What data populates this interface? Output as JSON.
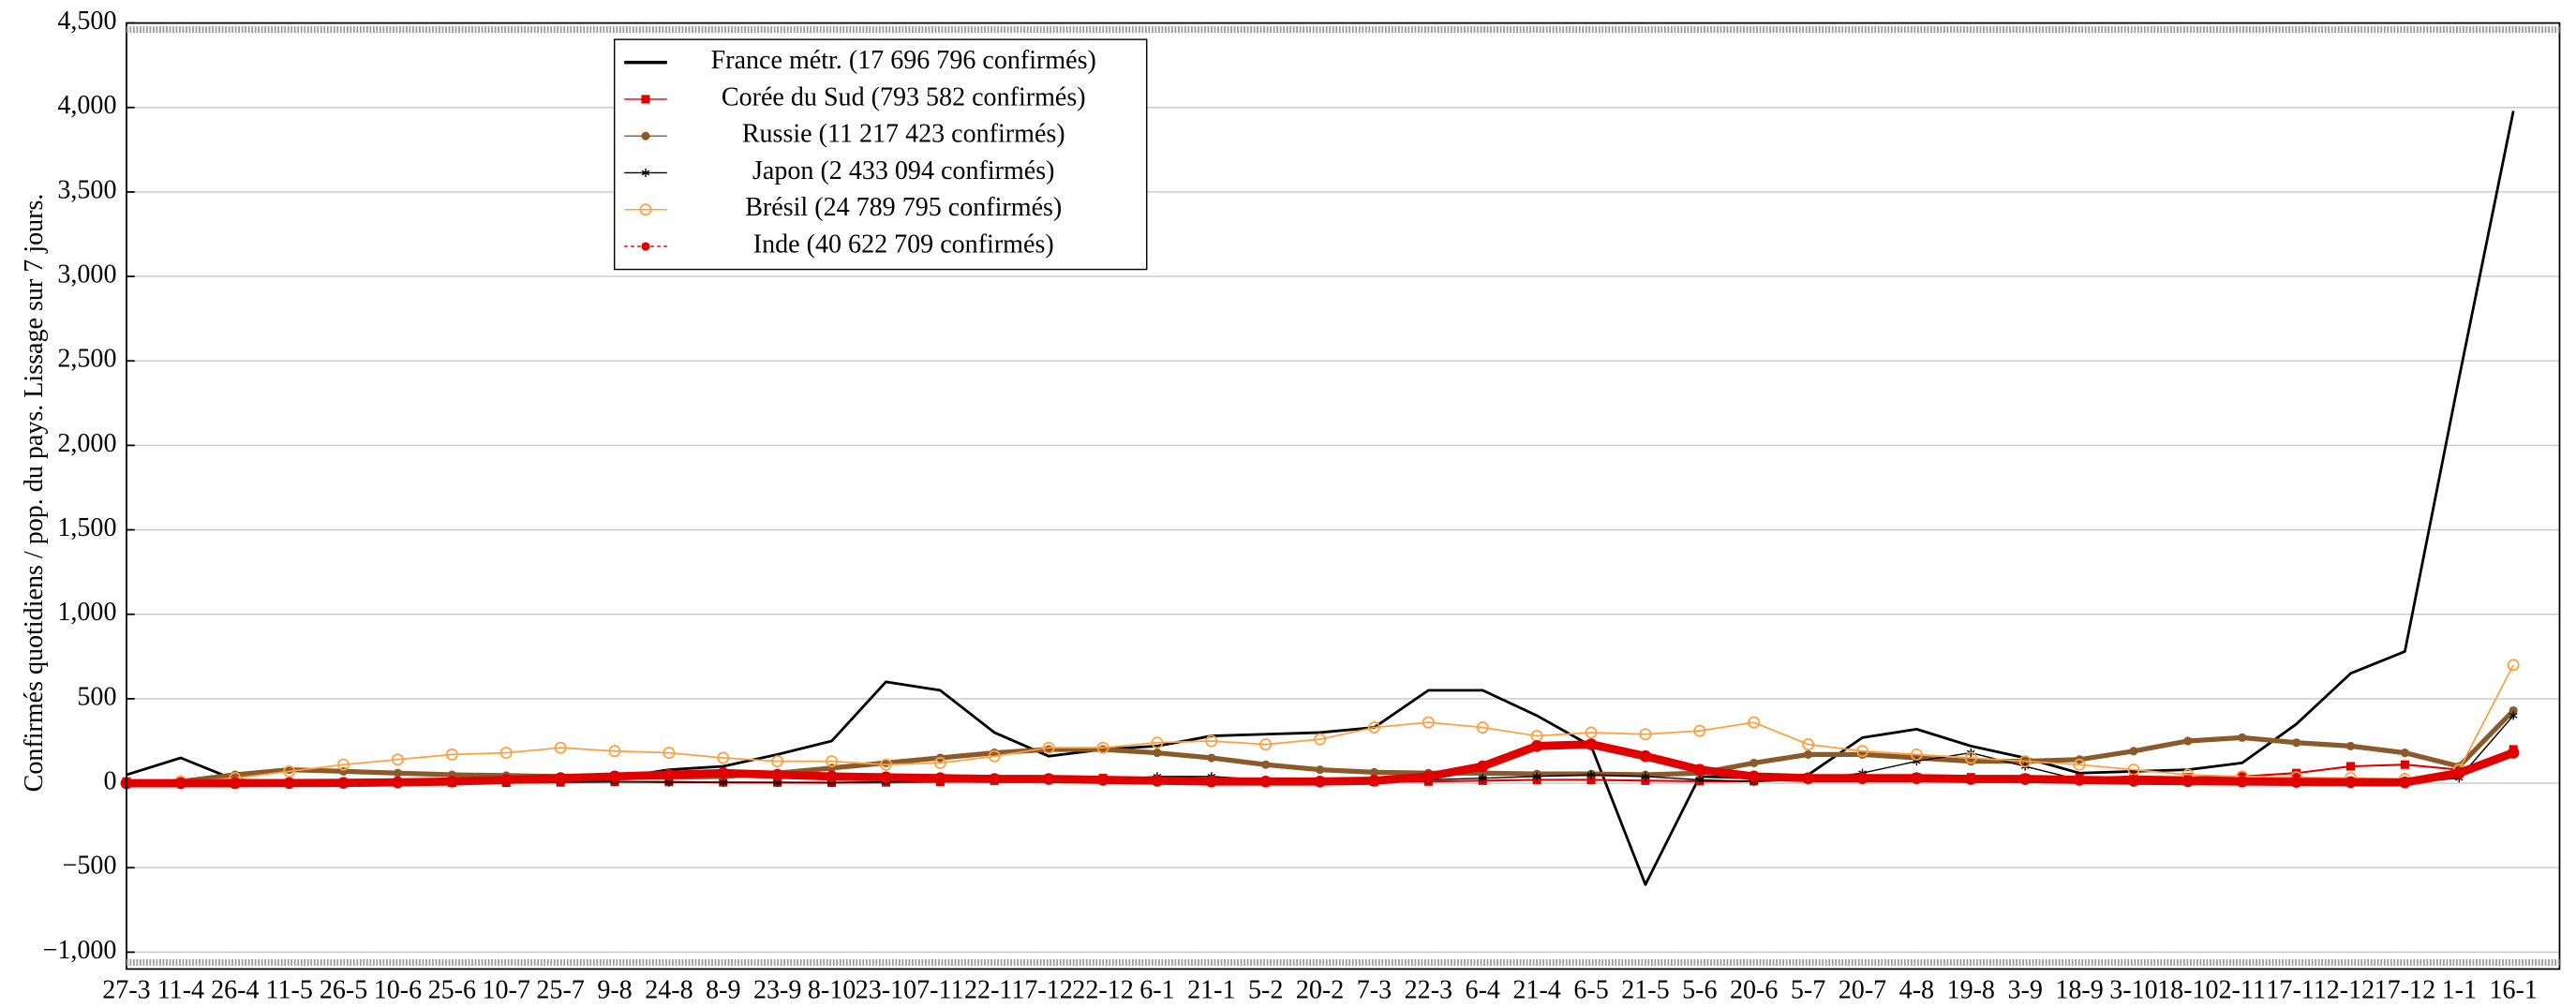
{
  "chart_data": {
    "type": "line",
    "ylabel": "Confirmés quotidiens / pop. du pays. Lissage sur 7 jours.",
    "categories": [
      "27-3",
      "11-4",
      "26-4",
      "11-5",
      "26-5",
      "10-6",
      "25-6",
      "10-7",
      "25-7",
      "9-8",
      "24-8",
      "8-9",
      "23-9",
      "8-10",
      "23-10",
      "7-11",
      "22-11",
      "7-12",
      "22-12",
      "6-1",
      "21-1",
      "5-2",
      "20-2",
      "7-3",
      "22-3",
      "6-4",
      "21-4",
      "6-5",
      "21-5",
      "5-6",
      "20-6",
      "5-7",
      "20-7",
      "4-8",
      "19-8",
      "3-9",
      "18-9",
      "3-10",
      "18-10",
      "2-11",
      "17-11",
      "2-12",
      "17-12",
      "1-1",
      "16-1"
    ],
    "ylim": [
      -1100,
      4500
    ],
    "yticks": [
      {
        "value": -1000,
        "label": "−1,000"
      },
      {
        "value": -500,
        "label": "−500"
      },
      0,
      500,
      {
        "value": 1000,
        "label": "1,000"
      },
      {
        "value": 1500,
        "label": "1,500"
      },
      {
        "value": 2000,
        "label": "2,000"
      },
      {
        "value": 2500,
        "label": "2,500"
      },
      {
        "value": 3000,
        "label": "3,000"
      },
      {
        "value": 3500,
        "label": "3,500"
      },
      {
        "value": 4000,
        "label": "4,000"
      },
      {
        "value": 4500,
        "label": "4,500"
      }
    ],
    "grid": true,
    "series": [
      {
        "name": "France métr. (17 696 796 confirmés)",
        "color": "#000000",
        "marker": "none",
        "values": [
          50,
          150,
          20,
          10,
          10,
          10,
          10,
          10,
          15,
          30,
          80,
          100,
          170,
          250,
          600,
          550,
          300,
          160,
          200,
          220,
          280,
          290,
          300,
          330,
          550,
          550,
          400,
          220,
          -600,
          40,
          30,
          50,
          270,
          320,
          220,
          150,
          60,
          70,
          80,
          120,
          350,
          650,
          780,
          2400,
          3980
        ]
      },
      {
        "name": "Corée du Sud (793 582 confirmés)",
        "color": "#e00000",
        "marker": "square",
        "values": [
          10,
          5,
          2,
          2,
          2,
          3,
          3,
          3,
          5,
          8,
          8,
          5,
          4,
          3,
          5,
          8,
          15,
          25,
          30,
          20,
          15,
          10,
          10,
          10,
          10,
          15,
          20,
          20,
          15,
          12,
          12,
          25,
          35,
          35,
          35,
          30,
          30,
          40,
          35,
          40,
          60,
          100,
          110,
          80,
          200
        ]
      },
      {
        "name": "Russie (11 217 423 confirmés)",
        "color": "#8b5a2b",
        "marker": "circle",
        "values": [
          0,
          10,
          50,
          80,
          70,
          60,
          50,
          45,
          40,
          35,
          35,
          40,
          60,
          90,
          120,
          150,
          180,
          200,
          200,
          180,
          150,
          110,
          80,
          65,
          60,
          60,
          55,
          55,
          50,
          60,
          120,
          170,
          170,
          150,
          130,
          130,
          140,
          190,
          250,
          270,
          240,
          220,
          180,
          100,
          430
        ]
      },
      {
        "name": "Japon (2 433 094 confirmés)",
        "color": "#000000",
        "marker": "star",
        "values": [
          0,
          2,
          3,
          2,
          1,
          1,
          1,
          5,
          10,
          10,
          5,
          4,
          4,
          5,
          8,
          15,
          20,
          20,
          20,
          40,
          40,
          20,
          10,
          10,
          20,
          30,
          40,
          50,
          40,
          20,
          10,
          20,
          60,
          130,
          180,
          100,
          20,
          5,
          3,
          2,
          2,
          2,
          3,
          30,
          400
        ]
      },
      {
        "name": "Brésil (24 789 795 confirmés)",
        "color": "#ffa040",
        "marker": "circle-open",
        "values": [
          0,
          10,
          30,
          70,
          110,
          140,
          170,
          180,
          210,
          190,
          180,
          150,
          130,
          130,
          110,
          120,
          160,
          210,
          210,
          240,
          250,
          230,
          260,
          330,
          360,
          330,
          280,
          300,
          290,
          310,
          360,
          230,
          190,
          170,
          150,
          130,
          110,
          80,
          50,
          40,
          35,
          30,
          25,
          80,
          700
        ]
      },
      {
        "name": "Inde (40 622 709 confirmés)",
        "color": "#e00000",
        "marker": "circle",
        "values": [
          0,
          0,
          0,
          1,
          2,
          5,
          10,
          20,
          30,
          40,
          50,
          60,
          50,
          40,
          35,
          30,
          25,
          25,
          20,
          15,
          10,
          10,
          10,
          15,
          40,
          100,
          220,
          230,
          160,
          80,
          40,
          30,
          30,
          30,
          25,
          25,
          20,
          15,
          12,
          10,
          8,
          6,
          5,
          60,
          180
        ]
      }
    ]
  }
}
